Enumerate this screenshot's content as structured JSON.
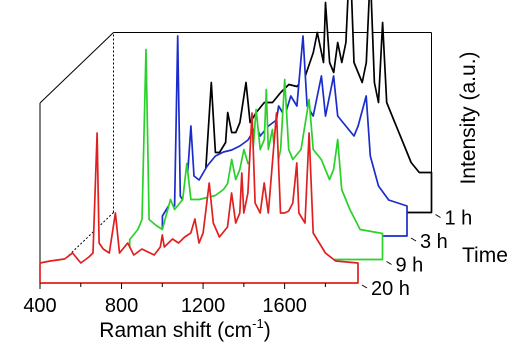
{
  "chart_data": {
    "type": "line",
    "style": "3d-waterfall",
    "xlabel": "Raman shift (cm",
    "xlabel_sup": "-1",
    "xlabel_end": ")",
    "ylabel": "Intensity (a.u.)",
    "zlabel": "Time",
    "xlim": [
      400,
      1960
    ],
    "xticks": [
      400,
      800,
      1200,
      1600
    ],
    "xtick_labels": [
      "400",
      "800",
      "1200",
      "1600"
    ],
    "grid": false,
    "legend": "none",
    "series": [
      {
        "name": "20 h",
        "color": "#e02020",
        "depth": 0,
        "base": 30,
        "points": [
          [
            400,
            20
          ],
          [
            450,
            22
          ],
          [
            520,
            24
          ],
          [
            560,
            30
          ],
          [
            600,
            20
          ],
          [
            640,
            26
          ],
          [
            660,
            30
          ],
          [
            680,
            150
          ],
          [
            690,
            40
          ],
          [
            710,
            34
          ],
          [
            740,
            30
          ],
          [
            770,
            70
          ],
          [
            790,
            30
          ],
          [
            830,
            40
          ],
          [
            860,
            28
          ],
          [
            900,
            34
          ],
          [
            960,
            28
          ],
          [
            990,
            36
          ],
          [
            1000,
            48
          ],
          [
            1010,
            36
          ],
          [
            1050,
            44
          ],
          [
            1080,
            40
          ],
          [
            1110,
            46
          ],
          [
            1140,
            50
          ],
          [
            1160,
            64
          ],
          [
            1180,
            40
          ],
          [
            1200,
            50
          ],
          [
            1230,
            100
          ],
          [
            1250,
            60
          ],
          [
            1280,
            46
          ],
          [
            1320,
            56
          ],
          [
            1340,
            90
          ],
          [
            1360,
            60
          ],
          [
            1380,
            70
          ],
          [
            1390,
            110
          ],
          [
            1400,
            70
          ],
          [
            1420,
            90
          ],
          [
            1440,
            170
          ],
          [
            1455,
            80
          ],
          [
            1480,
            70
          ],
          [
            1500,
            100
          ],
          [
            1520,
            70
          ],
          [
            1560,
            170
          ],
          [
            1580,
            70
          ],
          [
            1600,
            70
          ],
          [
            1620,
            72
          ],
          [
            1640,
            80
          ],
          [
            1660,
            120
          ],
          [
            1670,
            70
          ],
          [
            1700,
            60
          ],
          [
            1720,
            150
          ],
          [
            1740,
            50
          ],
          [
            1800,
            30
          ],
          [
            1850,
            22
          ],
          [
            1960,
            20
          ]
        ]
      },
      {
        "name": "9 h",
        "color": "#2ad12a",
        "depth": 1,
        "base": 30,
        "points": [
          [
            720,
            20
          ],
          [
            760,
            30
          ],
          [
            780,
            40
          ],
          [
            800,
            210
          ],
          [
            815,
            40
          ],
          [
            850,
            34
          ],
          [
            880,
            30
          ],
          [
            920,
            60
          ],
          [
            940,
            50
          ],
          [
            980,
            60
          ],
          [
            1000,
            96
          ],
          [
            1020,
            60
          ],
          [
            1060,
            60
          ],
          [
            1100,
            62
          ],
          [
            1140,
            64
          ],
          [
            1180,
            70
          ],
          [
            1200,
            76
          ],
          [
            1220,
            100
          ],
          [
            1240,
            80
          ],
          [
            1260,
            90
          ],
          [
            1280,
            110
          ],
          [
            1300,
            96
          ],
          [
            1320,
            96
          ],
          [
            1340,
            150
          ],
          [
            1360,
            110
          ],
          [
            1380,
            120
          ],
          [
            1390,
            170
          ],
          [
            1400,
            110
          ],
          [
            1420,
            130
          ],
          [
            1440,
            90
          ],
          [
            1460,
            110
          ],
          [
            1480,
            180
          ],
          [
            1500,
            110
          ],
          [
            1520,
            100
          ],
          [
            1560,
            110
          ],
          [
            1600,
            160
          ],
          [
            1620,
            110
          ],
          [
            1660,
            100
          ],
          [
            1700,
            80
          ],
          [
            1720,
            90
          ],
          [
            1740,
            120
          ],
          [
            1760,
            70
          ],
          [
            1800,
            50
          ],
          [
            1850,
            30
          ],
          [
            1960,
            26
          ]
        ]
      },
      {
        "name": "3 h",
        "color": "#1a2ccc",
        "depth": 2,
        "base": 30,
        "points": [
          [
            760,
            20
          ],
          [
            790,
            30
          ],
          [
            820,
            30
          ],
          [
            835,
            200
          ],
          [
            848,
            40
          ],
          [
            860,
            36
          ],
          [
            880,
            50
          ],
          [
            900,
            110
          ],
          [
            915,
            60
          ],
          [
            940,
            56
          ],
          [
            980,
            70
          ],
          [
            1020,
            80
          ],
          [
            1060,
            84
          ],
          [
            1100,
            86
          ],
          [
            1140,
            90
          ],
          [
            1180,
            96
          ],
          [
            1220,
            110
          ],
          [
            1240,
            100
          ],
          [
            1280,
            110
          ],
          [
            1320,
            116
          ],
          [
            1330,
            130
          ],
          [
            1360,
            120
          ],
          [
            1390,
            140
          ],
          [
            1420,
            130
          ],
          [
            1450,
            200
          ],
          [
            1470,
            130
          ],
          [
            1500,
            120
          ],
          [
            1540,
            160
          ],
          [
            1560,
            120
          ],
          [
            1600,
            160
          ],
          [
            1620,
            120
          ],
          [
            1660,
            110
          ],
          [
            1700,
            100
          ],
          [
            1720,
            110
          ],
          [
            1760,
            140
          ],
          [
            1780,
            80
          ],
          [
            1820,
            50
          ],
          [
            1870,
            36
          ],
          [
            1960,
            30
          ]
        ]
      },
      {
        "name": "1 h",
        "color": "#000000",
        "depth": 3,
        "base": 30,
        "points": [
          [
            790,
            24
          ],
          [
            810,
            30
          ],
          [
            830,
            26
          ],
          [
            850,
            34
          ],
          [
            880,
            130
          ],
          [
            900,
            60
          ],
          [
            920,
            60
          ],
          [
            950,
            70
          ],
          [
            960,
            100
          ],
          [
            980,
            80
          ],
          [
            1000,
            80
          ],
          [
            1020,
            90
          ],
          [
            1050,
            130
          ],
          [
            1070,
            90
          ],
          [
            1100,
            100
          ],
          [
            1140,
            110
          ],
          [
            1180,
            110
          ],
          [
            1220,
            120
          ],
          [
            1260,
            128
          ],
          [
            1300,
            126
          ],
          [
            1340,
            136
          ],
          [
            1380,
            160
          ],
          [
            1400,
            180
          ],
          [
            1430,
            150
          ],
          [
            1440,
            210
          ],
          [
            1460,
            150
          ],
          [
            1480,
            140
          ],
          [
            1500,
            170
          ],
          [
            1520,
            150
          ],
          [
            1540,
            170
          ],
          [
            1560,
            260
          ],
          [
            1580,
            150
          ],
          [
            1620,
            130
          ],
          [
            1640,
            150
          ],
          [
            1660,
            240
          ],
          [
            1680,
            130
          ],
          [
            1700,
            110
          ],
          [
            1720,
            190
          ],
          [
            1740,
            110
          ],
          [
            1780,
            90
          ],
          [
            1820,
            70
          ],
          [
            1860,
            50
          ],
          [
            1900,
            40
          ],
          [
            1960,
            40
          ]
        ]
      }
    ]
  }
}
